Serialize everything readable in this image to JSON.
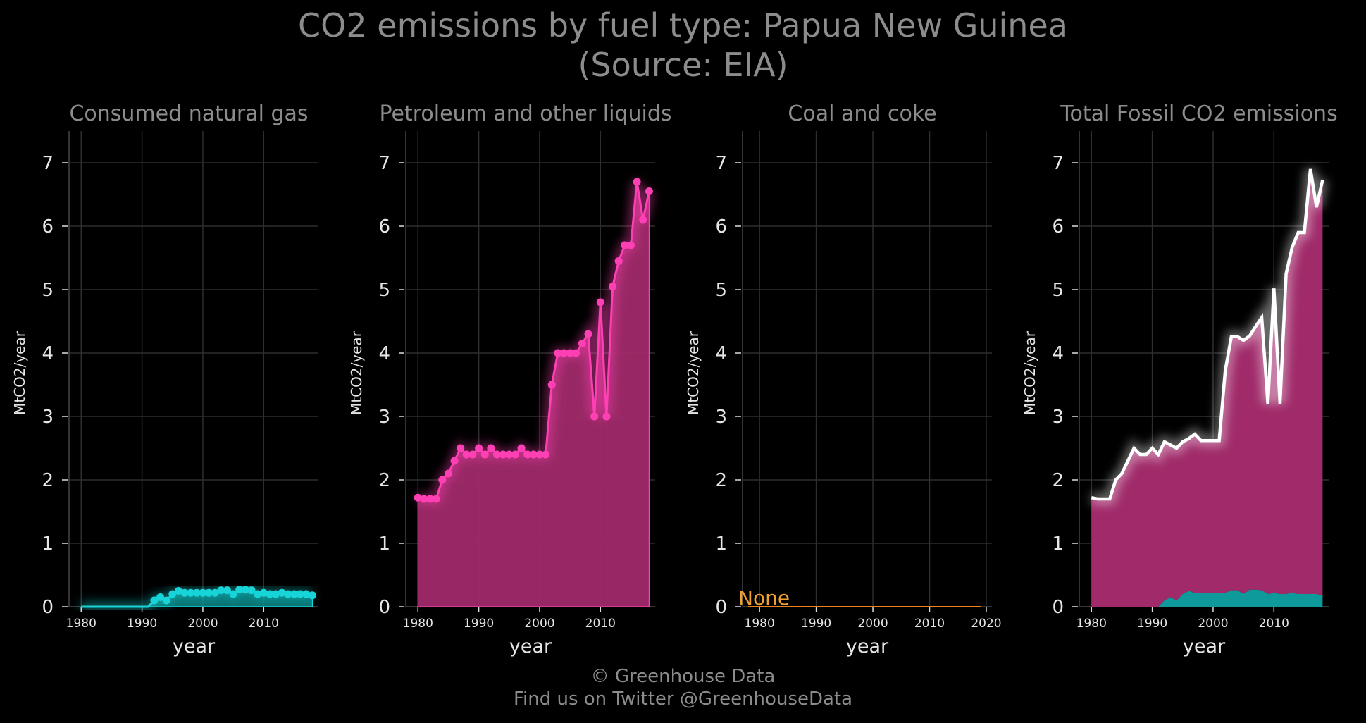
{
  "title_line1": "CO2 emissions by fuel type: Papua New Guinea",
  "title_line2": "(Source: EIA)",
  "footer_line1": "© Greenhouse Data",
  "footer_line2": "Find us on Twitter @GreenhouseData",
  "colors": {
    "background": "#000000",
    "gas": "#16d4d8",
    "gas_area": "#0e9a9a",
    "petroleum": "#ff3fb4",
    "petroleum_area": "#a02a6a",
    "coal": "#e8831f",
    "total_line": "#ffffff",
    "grid": "#2e2e2e"
  },
  "chart_data": [
    {
      "type": "area",
      "title": "Consumed natural gas",
      "xlabel": "year",
      "ylabel": "MtCO2/year",
      "xlim": [
        1978,
        2019
      ],
      "ylim": [
        0,
        7.5
      ],
      "xticks": [
        1980,
        1990,
        2000,
        2010
      ],
      "yticks": [
        0,
        1,
        2,
        3,
        4,
        5,
        6,
        7
      ],
      "series": [
        {
          "x": [
            1980,
            1981,
            1982,
            1983,
            1984,
            1985,
            1986,
            1987,
            1988,
            1989,
            1990,
            1991,
            1992,
            1993,
            1994,
            1995,
            1996,
            1997,
            1998,
            1999,
            2000,
            2001,
            2002,
            2003,
            2004,
            2005,
            2006,
            2007,
            2008,
            2009,
            2010,
            2011,
            2012,
            2013,
            2014,
            2015,
            2016,
            2017,
            2018
          ],
          "y": [
            0,
            0,
            0,
            0,
            0,
            0,
            0,
            0,
            0,
            0,
            0,
            0,
            0.1,
            0.15,
            0.1,
            0.2,
            0.25,
            0.22,
            0.22,
            0.22,
            0.22,
            0.22,
            0.22,
            0.26,
            0.26,
            0.2,
            0.27,
            0.27,
            0.26,
            0.2,
            0.22,
            0.2,
            0.2,
            0.22,
            0.2,
            0.2,
            0.2,
            0.2,
            0.18
          ],
          "markers_from": 1992
        }
      ]
    },
    {
      "type": "area",
      "title": "Petroleum and other liquids",
      "xlabel": "year",
      "ylabel": "MtCO2/year",
      "xlim": [
        1978,
        2019
      ],
      "ylim": [
        0,
        7.5
      ],
      "xticks": [
        1980,
        1990,
        2000,
        2010
      ],
      "yticks": [
        0,
        1,
        2,
        3,
        4,
        5,
        6,
        7
      ],
      "series": [
        {
          "x": [
            1980,
            1981,
            1982,
            1983,
            1984,
            1985,
            1986,
            1987,
            1988,
            1989,
            1990,
            1991,
            1992,
            1993,
            1994,
            1995,
            1996,
            1997,
            1998,
            1999,
            2000,
            2001,
            2002,
            2003,
            2004,
            2005,
            2006,
            2007,
            2008,
            2009,
            2010,
            2011,
            2012,
            2013,
            2014,
            2015,
            2016,
            2017,
            2018
          ],
          "y": [
            1.72,
            1.7,
            1.7,
            1.7,
            2.0,
            2.1,
            2.3,
            2.5,
            2.4,
            2.4,
            2.5,
            2.4,
            2.5,
            2.4,
            2.4,
            2.4,
            2.4,
            2.5,
            2.4,
            2.4,
            2.4,
            2.4,
            3.5,
            4.0,
            4.0,
            4.0,
            4.0,
            4.15,
            4.3,
            3.0,
            4.8,
            3.0,
            5.05,
            5.45,
            5.7,
            5.7,
            6.7,
            6.1,
            6.55
          ],
          "markers_from": 1980
        }
      ]
    },
    {
      "type": "line",
      "title": "Coal and coke",
      "xlabel": "year",
      "ylabel": "MtCO2/year",
      "xlim": [
        1977,
        2021
      ],
      "ylim": [
        0,
        7.5
      ],
      "xticks": [
        1980,
        1990,
        2000,
        2010,
        2020
      ],
      "yticks": [
        0,
        1,
        2,
        3,
        4,
        5,
        6,
        7
      ],
      "annotation": "None",
      "series": [
        {
          "x": [
            1978,
            2019
          ],
          "y": [
            0,
            0
          ]
        }
      ]
    },
    {
      "type": "area",
      "title": "Total Fossil CO2 emissions",
      "xlabel": "year",
      "ylabel": "MtCO2/year",
      "xlim": [
        1978,
        2019
      ],
      "ylim": [
        0,
        7.5
      ],
      "xticks": [
        1980,
        1990,
        2000,
        2010
      ],
      "yticks": [
        0,
        1,
        2,
        3,
        4,
        5,
        6,
        7
      ],
      "stacked_from": [
        0,
        1
      ],
      "total": {
        "x": [
          1980,
          1981,
          1982,
          1983,
          1984,
          1985,
          1986,
          1987,
          1988,
          1989,
          1990,
          1991,
          1992,
          1993,
          1994,
          1995,
          1996,
          1997,
          1998,
          1999,
          2000,
          2001,
          2002,
          2003,
          2004,
          2005,
          2006,
          2007,
          2008,
          2009,
          2010,
          2011,
          2012,
          2013,
          2014,
          2015,
          2016,
          2017,
          2018
        ],
        "y": [
          1.72,
          1.7,
          1.7,
          1.7,
          2.0,
          2.1,
          2.3,
          2.5,
          2.4,
          2.4,
          2.5,
          2.4,
          2.6,
          2.55,
          2.5,
          2.6,
          2.65,
          2.72,
          2.62,
          2.62,
          2.62,
          2.62,
          3.72,
          4.26,
          4.26,
          4.2,
          4.27,
          4.42,
          4.56,
          3.2,
          5.02,
          3.2,
          5.25,
          5.67,
          5.9,
          5.9,
          6.9,
          6.3,
          6.73
        ]
      }
    }
  ]
}
